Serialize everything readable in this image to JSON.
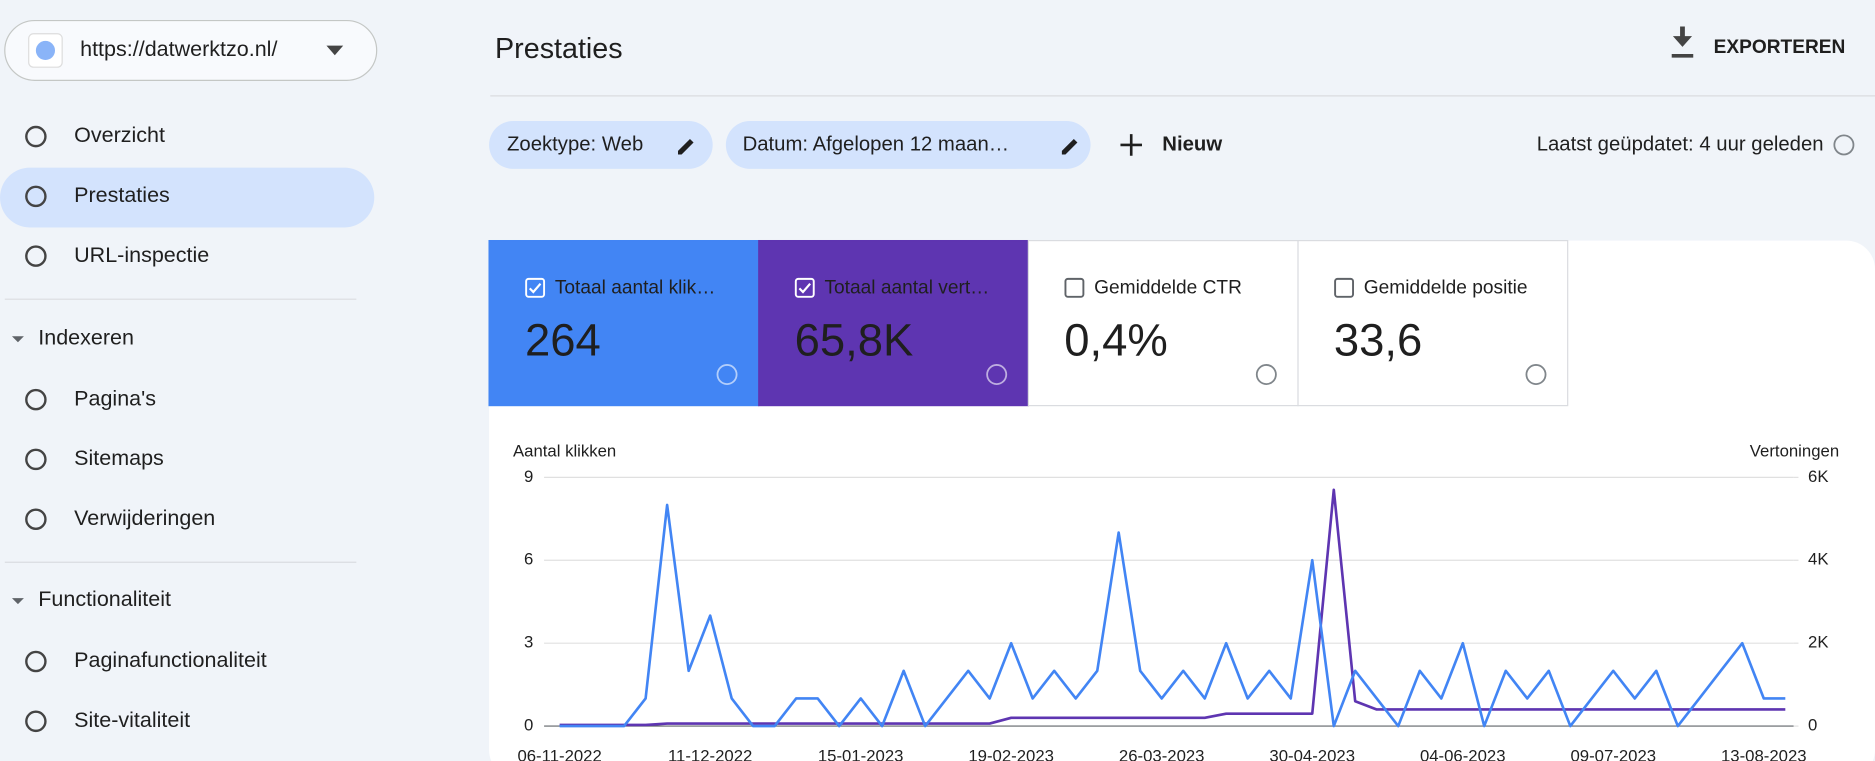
{
  "site_selector": "https://datwerktzo.nl/",
  "nav": [
    "Overzicht",
    "Prestaties",
    "URL-inspectie"
  ],
  "sections": [
    {
      "title": "Indexeren",
      "items": [
        "Pagina's",
        "Sitemaps",
        "Verwijderingen"
      ]
    },
    {
      "title": "Functionaliteit",
      "items": [
        "Paginafunctionaliteit",
        "Site-vitaliteit"
      ]
    }
  ],
  "header": {
    "title": "Prestaties",
    "export": "EXPORTEREN"
  },
  "filters": {
    "chips": [
      "Zoektype: Web",
      "Datum: Afgelopen 12 maan…"
    ],
    "new": "Nieuw",
    "updated": "Laatst geüpdatet: 4 uur geleden"
  },
  "metrics": [
    {
      "label": "Totaal aantal klik…",
      "value": "264",
      "checked": true,
      "color": "#4285f4"
    },
    {
      "label": "Totaal aantal vert…",
      "value": "65,8K",
      "checked": true,
      "color": "#5e35b1"
    },
    {
      "label": "Gemiddelde CTR",
      "value": "0,4%",
      "checked": false,
      "color": "#ffffff"
    },
    {
      "label": "Gemiddelde positie",
      "value": "33,6",
      "checked": false,
      "color": "#ffffff"
    }
  ],
  "chart_data": {
    "type": "line",
    "y_label": "Aantal klikken",
    "y2_label": "Vertoningen",
    "grid": true,
    "categories": [
      "06-11-2022",
      null,
      null,
      null,
      null,
      null,
      null,
      "11-12-2022",
      null,
      null,
      null,
      null,
      null,
      null,
      "15-01-2023",
      null,
      null,
      null,
      null,
      null,
      null,
      "19-02-2023",
      null,
      null,
      null,
      null,
      null,
      null,
      "26-03-2023",
      null,
      null,
      null,
      null,
      null,
      null,
      "30-04-2023",
      null,
      null,
      null,
      null,
      null,
      null,
      "04-06-2023",
      null,
      null,
      null,
      null,
      null,
      null,
      "09-07-2023",
      null,
      null,
      null,
      null,
      null,
      null,
      "13-08-2023",
      null
    ],
    "ylim": [
      0,
      9
    ],
    "yticks": [
      0,
      3,
      6,
      9
    ],
    "y2lim": [
      0,
      6000
    ],
    "y2ticks": [
      0,
      {
        "value": 2000,
        "label": "2K"
      },
      {
        "value": 4000,
        "label": "4K"
      },
      {
        "value": 6000,
        "label": "6K"
      }
    ],
    "series": [
      {
        "color": "#4285f4",
        "axis": "y",
        "values": [
          0,
          0,
          0,
          0,
          1,
          8,
          2,
          4,
          1,
          0,
          0,
          1,
          1,
          0,
          1,
          0,
          2,
          0,
          1,
          2,
          1,
          3,
          1,
          2,
          1,
          2,
          7,
          2,
          1,
          2,
          1,
          3,
          1,
          2,
          1,
          6,
          0,
          2,
          1,
          0,
          2,
          1,
          3,
          0,
          2,
          1,
          2,
          0,
          1,
          2,
          1,
          2,
          0,
          1,
          2,
          3,
          1,
          1
        ]
      },
      {
        "color": "#5e35b1",
        "axis": "y2",
        "values": [
          30,
          30,
          30,
          30,
          30,
          60,
          60,
          60,
          60,
          60,
          60,
          60,
          60,
          60,
          60,
          60,
          60,
          60,
          60,
          60,
          60,
          200,
          200,
          200,
          200,
          200,
          200,
          200,
          200,
          200,
          200,
          300,
          300,
          300,
          300,
          300,
          5700,
          600,
          400,
          400,
          400,
          400,
          400,
          400,
          400,
          400,
          400,
          400,
          400,
          400,
          400,
          400,
          400,
          400,
          400,
          400,
          400,
          400
        ]
      }
    ]
  }
}
